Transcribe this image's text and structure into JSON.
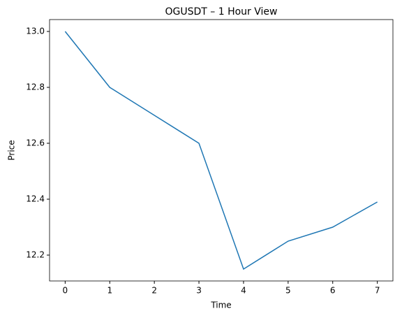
{
  "chart_data": {
    "type": "line",
    "title": "OGUSDT – 1 Hour View",
    "x_label": "Time",
    "y_label": "Price",
    "x": [
      0,
      1,
      2,
      3,
      4,
      5,
      6,
      7
    ],
    "series": [
      {
        "color": "#1f77b4",
        "values": [
          13.0,
          12.8,
          12.7,
          12.6,
          12.15,
          12.25,
          12.3,
          12.39
        ]
      }
    ],
    "xlim": [
      -0.35,
      7.35
    ],
    "xticks": [
      0,
      1,
      2,
      3,
      4,
      5,
      6,
      7
    ],
    "ylim": [
      12.1075,
      13.0425
    ],
    "yticks": [
      {
        "value": 12.2,
        "label": "12.2"
      },
      {
        "value": 12.4,
        "label": "12.4"
      },
      {
        "value": 12.6,
        "label": "12.6"
      },
      {
        "value": 12.8,
        "label": "12.8"
      },
      {
        "value": 13,
        "label": "13.0"
      }
    ]
  }
}
